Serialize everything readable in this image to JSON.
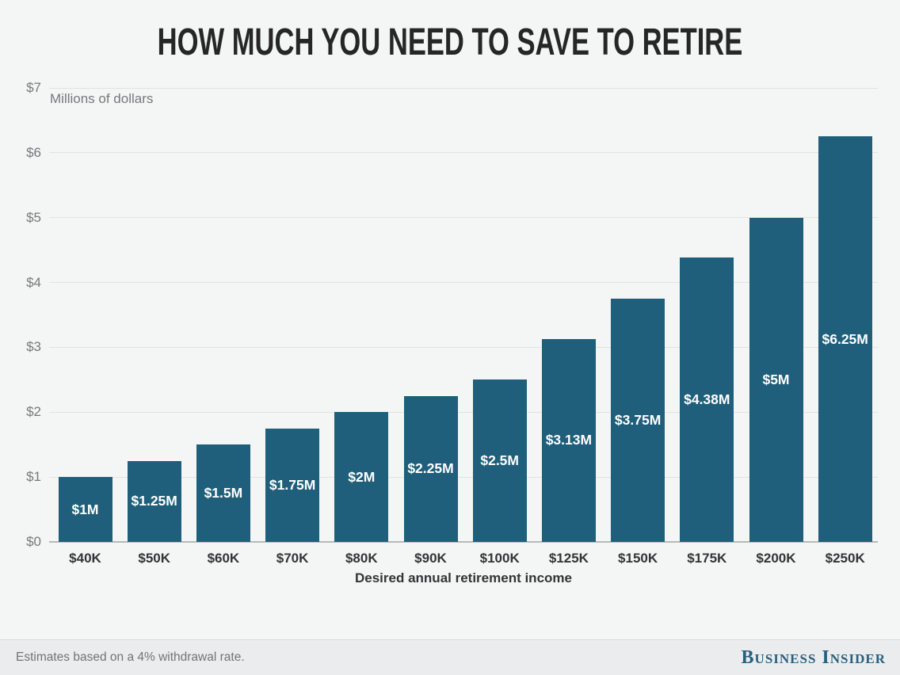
{
  "title": "HOW MUCH YOU NEED TO SAVE TO RETIRE",
  "chart_data": {
    "type": "bar",
    "title": "HOW MUCH YOU NEED TO SAVE TO RETIRE",
    "subtitle": "",
    "unit_label": "Millions of dollars",
    "xlabel": "Desired annual retirement income",
    "ylabel": "Millions of dollars",
    "categories": [
      "$40K",
      "$50K",
      "$60K",
      "$70K",
      "$80K",
      "$90K",
      "$100K",
      "$125K",
      "$150K",
      "$175K",
      "$200K",
      "$250K"
    ],
    "values": [
      1,
      1.25,
      1.5,
      1.75,
      2,
      2.25,
      2.5,
      3.13,
      3.75,
      4.38,
      5,
      6.25
    ],
    "bar_labels": [
      "$1M",
      "$1.25M",
      "$1.5M",
      "$1.75M",
      "$2M",
      "$2.25M",
      "$2.5M",
      "$3.13M",
      "$3.75M",
      "$4.38M",
      "$5M",
      "$6.25M"
    ],
    "yticks": [
      "$0",
      "$1",
      "$2",
      "$3",
      "$4",
      "$5",
      "$6",
      "$7"
    ],
    "ylim": [
      0,
      7
    ],
    "grid": true,
    "legend": false,
    "bar_color": "#1f5f7b"
  },
  "footer": {
    "note": "Estimates based on a 4% withdrawal rate.",
    "brand": "Business Insider"
  },
  "colors": {
    "background": "#f4f5f5",
    "footer_background": "#ebeced",
    "bar": "#1f5f7b",
    "gridline": "#e1e2e2",
    "axis_line": "#b7baba",
    "tick_text": "#77787a",
    "category_text": "#333435",
    "title_text": "#262626",
    "bar_label_text": "#ffffff",
    "brand_text": "#27607f"
  }
}
